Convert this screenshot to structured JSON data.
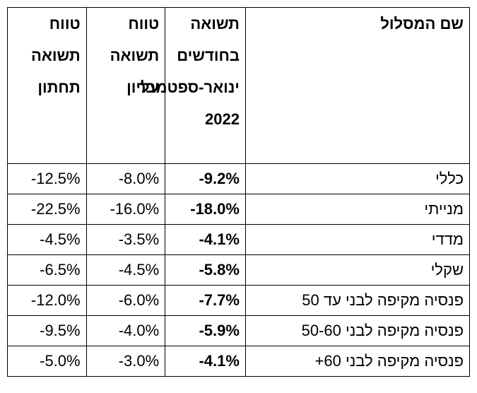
{
  "table": {
    "headers": {
      "track_name": "שם המסלול",
      "period_return": "תשואה בחודשים ינואר-ספטמבר 2022",
      "upper_range": "טווח תשואה עליון",
      "lower_range": "טווח תשואה תחתון"
    },
    "rows": [
      {
        "name": "כללי",
        "period_return": "-9.2%",
        "upper": "-8.0%",
        "lower": "-12.5%"
      },
      {
        "name": "מנייתי",
        "period_return": "-18.0%",
        "upper": "-16.0%",
        "lower": "-22.5%"
      },
      {
        "name": "מדדי",
        "period_return": "-4.1%",
        "upper": "-3.5%",
        "lower": "-4.5%"
      },
      {
        "name": "שקלי",
        "period_return": "-5.8%",
        "upper": "-4.5%",
        "lower": "-6.5%"
      },
      {
        "name": "פנסיה מקיפה לבני עד 50",
        "period_return": "-7.7%",
        "upper": "-6.0%",
        "lower": "-12.0%"
      },
      {
        "name": "פנסיה מקיפה לבני 50-60",
        "period_return": "-5.9%",
        "upper": "-4.0%",
        "lower": "-9.5%"
      },
      {
        "name": "פנסיה מקיפה לבני 60+",
        "period_return": "-4.1%",
        "upper": "-3.0%",
        "lower": "-5.0%"
      }
    ]
  }
}
